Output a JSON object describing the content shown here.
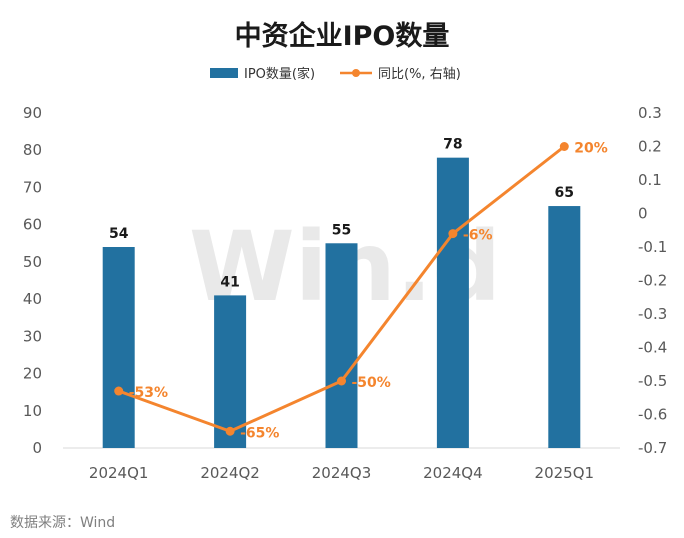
{
  "chart_data": {
    "type": "bar",
    "title": "中资企业IPO数量",
    "categories": [
      "2024Q1",
      "2024Q2",
      "2024Q3",
      "2024Q4",
      "2025Q1"
    ],
    "series": [
      {
        "name": "IPO数量(家)",
        "type": "bar",
        "axis": "left",
        "color": "#2271a0",
        "values": [
          54,
          41,
          55,
          78,
          65
        ],
        "labels": [
          "54",
          "41",
          "55",
          "78",
          "65"
        ]
      },
      {
        "name": "同比(%, 右轴)",
        "type": "line",
        "axis": "right",
        "color": "#f4852e",
        "values": [
          -0.53,
          -0.65,
          -0.5,
          -0.06,
          0.2
        ],
        "labels": [
          "-53%",
          "-65%",
          "-50%",
          "-6%",
          "20%"
        ]
      }
    ],
    "ylim_left": [
      0,
      90
    ],
    "yticks_left": [
      "0",
      "10",
      "20",
      "30",
      "40",
      "50",
      "60",
      "70",
      "80",
      "90"
    ],
    "ylim_right": [
      -0.7,
      0.3
    ],
    "yticks_right": [
      "-0.7",
      "-0.6",
      "-0.5",
      "-0.4",
      "-0.3",
      "-0.2",
      "-0.1",
      "0",
      "0.1",
      "0.2",
      "0.3"
    ],
    "legend_position": "top",
    "grid": false
  },
  "watermark": "Win.d",
  "source": "数据来源：Wind"
}
